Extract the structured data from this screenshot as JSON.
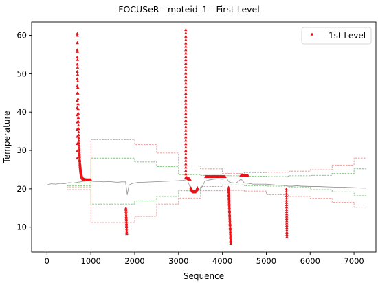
{
  "chart_data": {
    "type": "line",
    "title": "FOCUSeR - moteid_1 - First Level",
    "xlabel": "Sequence",
    "ylabel": "Temperature",
    "xlim": [
      -350,
      7500
    ],
    "ylim": [
      3.5,
      63.5
    ],
    "xticks": [
      0,
      1000,
      2000,
      3000,
      4000,
      5000,
      6000,
      7000
    ],
    "yticks": [
      10,
      20,
      30,
      40,
      50,
      60
    ],
    "legend": {
      "position": "top-right",
      "entries": [
        "1st Level"
      ]
    },
    "colors": {
      "series": "#999999",
      "points": "#e8141a",
      "band_red": "#f08080",
      "band_green": "#66bb66"
    },
    "series": [
      {
        "style": "line",
        "x": [
          0,
          100,
          200,
          300,
          400,
          500,
          600,
          700,
          800,
          900,
          1000,
          1100,
          1200,
          1300,
          1400,
          1500,
          1600,
          1700,
          1790,
          1810,
          1830,
          1870,
          1950,
          2000,
          2100,
          2200,
          2400,
          2600,
          2800,
          3000,
          3100,
          3160,
          3180,
          3200,
          3260,
          3300,
          3400,
          3500,
          3550,
          3600,
          3700,
          3800,
          3900,
          4000,
          4050,
          4100,
          4150,
          4200,
          4300,
          4350,
          4400,
          4420,
          4480,
          4500,
          4600,
          4700,
          4800,
          5000,
          5200,
          5400,
          5450,
          5500,
          5600,
          5700,
          5800,
          6000,
          6200,
          6400,
          6600,
          6800,
          7000,
          7200,
          7280
        ],
        "y": [
          21.0,
          21.3,
          21.2,
          21.4,
          21.3,
          21.6,
          21.5,
          21.7,
          21.9,
          22.0,
          22.0,
          21.9,
          21.9,
          21.8,
          21.9,
          21.8,
          21.7,
          21.8,
          21.8,
          20.2,
          18.4,
          21.0,
          21.4,
          21.5,
          21.7,
          21.7,
          21.8,
          21.9,
          22.0,
          22.1,
          22.2,
          22.3,
          22.5,
          22.3,
          20.5,
          19.5,
          19.5,
          19.9,
          20.8,
          22.0,
          22.3,
          22.5,
          22.6,
          22.5,
          22.6,
          22.6,
          21.8,
          21.6,
          21.5,
          21.8,
          22.3,
          22.6,
          21.8,
          21.5,
          21.4,
          21.2,
          21.2,
          21.2,
          21.0,
          20.9,
          20.8,
          20.7,
          20.7,
          20.8,
          20.7,
          20.6,
          20.6,
          20.5,
          20.4,
          20.4,
          20.3,
          20.2,
          20.2
        ]
      },
      {
        "style": "step",
        "role": "upper-bound",
        "x": [
          450,
          1000,
          1000,
          2000,
          2000,
          2500,
          2500,
          3000,
          3000,
          3500,
          3500,
          4000,
          4000,
          4500,
          4500,
          5000,
          5000,
          5500,
          5500,
          6000,
          6000,
          6500,
          6500,
          7000,
          7000,
          7280
        ],
        "y": [
          20.5,
          20.5,
          32.8,
          32.8,
          31.5,
          31.5,
          29.3,
          29.3,
          26.0,
          26.0,
          25.2,
          25.2,
          24.0,
          24.0,
          24.2,
          24.2,
          24.3,
          24.3,
          24.6,
          24.6,
          25.0,
          25.0,
          26.2,
          26.2,
          28.0,
          28.0
        ]
      },
      {
        "style": "step",
        "role": "upper-inner",
        "x": [
          450,
          1000,
          1000,
          2000,
          2000,
          2500,
          2500,
          3000,
          3000,
          3500,
          3500,
          4000,
          4000,
          4500,
          4500,
          5000,
          5000,
          5500,
          5500,
          6000,
          6000,
          6500,
          6500,
          7000,
          7000,
          7280
        ],
        "y": [
          21.5,
          21.5,
          28.0,
          28.0,
          27.0,
          27.0,
          25.8,
          25.8,
          23.7,
          23.7,
          23.5,
          23.5,
          23.4,
          23.4,
          23.3,
          23.3,
          23.2,
          23.2,
          23.4,
          23.4,
          23.5,
          23.5,
          24.0,
          24.0,
          25.2,
          25.2
        ]
      },
      {
        "style": "step",
        "role": "lower-inner",
        "x": [
          450,
          1000,
          1000,
          2000,
          2000,
          2500,
          2500,
          3000,
          3000,
          3500,
          3500,
          4000,
          4000,
          4500,
          4500,
          5000,
          5000,
          5500,
          5500,
          6000,
          6000,
          6500,
          6500,
          7000,
          7000,
          7280
        ],
        "y": [
          20.8,
          20.8,
          16.0,
          16.0,
          16.8,
          16.8,
          18.0,
          18.0,
          19.5,
          19.5,
          20.6,
          20.6,
          21.0,
          21.0,
          20.8,
          20.8,
          20.7,
          20.7,
          20.5,
          20.5,
          19.8,
          19.8,
          19.2,
          19.2,
          18.2,
          18.2
        ]
      },
      {
        "style": "step",
        "role": "lower-bound",
        "x": [
          450,
          1000,
          1000,
          2000,
          2000,
          2500,
          2500,
          3000,
          3000,
          3500,
          3500,
          4000,
          4000,
          4500,
          4500,
          5000,
          5000,
          5500,
          5500,
          6000,
          6000,
          6500,
          6500,
          7000,
          7000,
          7280
        ],
        "y": [
          19.8,
          19.8,
          11.2,
          11.2,
          12.8,
          12.8,
          16.0,
          16.0,
          17.6,
          17.6,
          19.5,
          19.5,
          19.6,
          19.6,
          19.4,
          19.4,
          18.5,
          18.5,
          18.0,
          18.0,
          17.5,
          17.5,
          16.5,
          16.5,
          15.2,
          15.2
        ]
      },
      {
        "name": "1st Level",
        "style": "markers",
        "marker": "triangle-up",
        "segments": [
          {
            "fn": "decay",
            "x0": 690,
            "x1": 1000,
            "n": 170,
            "y0": 60.5,
            "yEnd": 22.3,
            "k": 28
          },
          {
            "fn": "vspan",
            "x": 690,
            "y": [
              28.0,
              60.0
            ],
            "n": 18
          },
          {
            "fn": "dip",
            "x0": 1800,
            "x1": 1820,
            "n": 16,
            "y": [
              15.0,
              8.3
            ]
          },
          {
            "fn": "vspan",
            "x": 3165,
            "y": [
              23.0,
              61.5
            ],
            "n": 45
          },
          {
            "fn": "recover",
            "x0": 3170,
            "x1": 3260,
            "n": 24,
            "y": [
              23.0,
              22.5
            ]
          },
          {
            "fn": "bowl",
            "x0": 3280,
            "x1": 3430,
            "n": 28,
            "ymin": 19.2,
            "ymax": 20.3
          },
          {
            "fn": "flat",
            "x0": 3620,
            "x1": 4060,
            "n": 60,
            "y": 23.2
          },
          {
            "fn": "dip",
            "x0": 4140,
            "x1": 4190,
            "n": 40,
            "y": [
              20.4,
              5.8
            ]
          },
          {
            "fn": "flat",
            "x0": 4420,
            "x1": 4580,
            "n": 26,
            "y": 23.5
          },
          {
            "fn": "dip",
            "x0": 5460,
            "x1": 5470,
            "n": 22,
            "y": [
              20.0,
              7.5
            ]
          }
        ]
      }
    ]
  }
}
